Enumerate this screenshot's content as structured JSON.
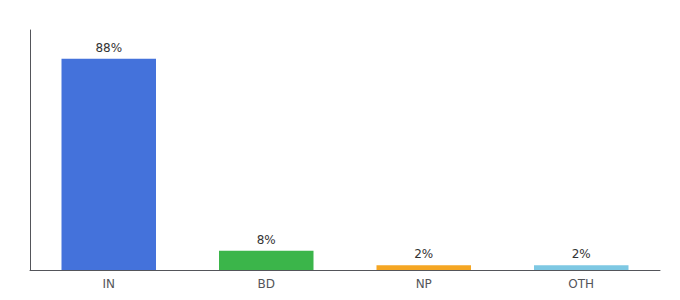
{
  "chart_data": {
    "type": "bar",
    "categories": [
      "IN",
      "BD",
      "NP",
      "OTH"
    ],
    "values": [
      88,
      8,
      2,
      2
    ],
    "value_labels": [
      "88%",
      "8%",
      "2%",
      "2%"
    ],
    "colors": [
      "#4472DB",
      "#3BB54A",
      "#F5A623",
      "#7EC8E3"
    ],
    "ylim": [
      0,
      100
    ],
    "grid": false,
    "data_labels": true,
    "tick_labels": "x"
  }
}
